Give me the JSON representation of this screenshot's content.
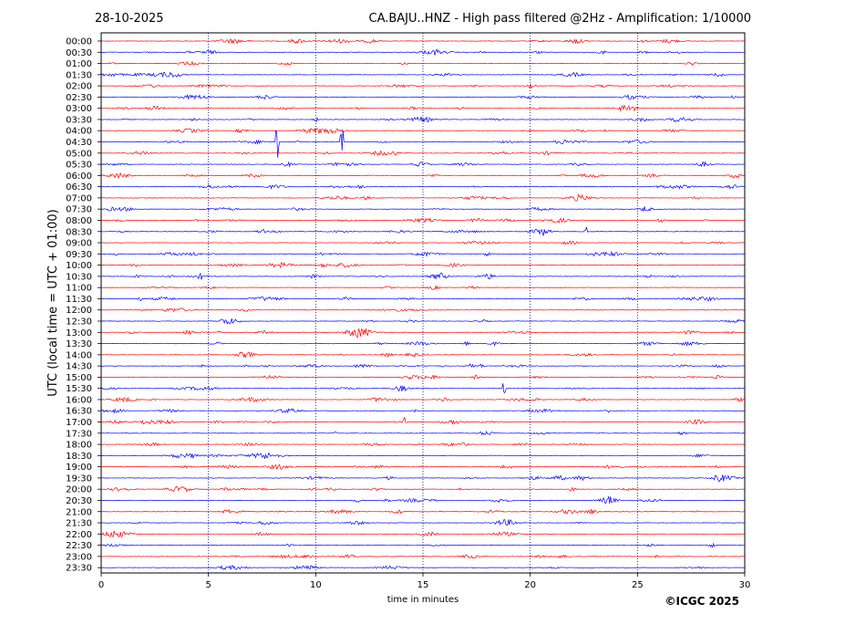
{
  "header": {
    "date": "28-10-2025",
    "title": "CA.BAJU..HNZ - High pass filtered @2Hz - Amplification: 1/10000"
  },
  "footer": {
    "copyright": "©ICGC 2025"
  },
  "colors": {
    "even_rows": "#ff0000",
    "odd_rows": "#0000ff",
    "grid": "#000080"
  },
  "chart_data": {
    "type": "line",
    "title": "CA.BAJU..HNZ - High pass filtered @2Hz - Amplification: 1/10000",
    "xlabel": "time in minutes",
    "ylabel": "UTC (local time = UTC + 01:00)",
    "xlim": [
      0,
      30
    ],
    "x_ticks": [
      "0",
      "5",
      "10",
      "15",
      "20",
      "25",
      "30"
    ],
    "grid_x": [
      5,
      10,
      15,
      20,
      25
    ],
    "rows": [
      "00:00",
      "00:30",
      "01:00",
      "01:30",
      "02:00",
      "02:30",
      "03:00",
      "03:30",
      "04:00",
      "04:30",
      "05:00",
      "05:30",
      "06:00",
      "06:30",
      "07:00",
      "07:30",
      "08:00",
      "08:30",
      "09:00",
      "09:30",
      "10:00",
      "10:30",
      "11:00",
      "11:30",
      "12:00",
      "12:30",
      "13:00",
      "13:30",
      "14:00",
      "14:30",
      "15:00",
      "15:30",
      "16:00",
      "16:30",
      "17:00",
      "17:30",
      "18:00",
      "18:30",
      "19:00",
      "19:30",
      "20:00",
      "20:30",
      "21:00",
      "21:30",
      "22:00",
      "22:30",
      "23:00",
      "23:30"
    ],
    "notable_events": [
      {
        "row": "04:30",
        "minute": 8.2,
        "note": "large amplitude spike"
      },
      {
        "row": "04:30",
        "minute": 11.2,
        "note": "large amplitude spike"
      },
      {
        "row": "08:30",
        "minute": 22.6,
        "note": "small event"
      },
      {
        "row": "10:30",
        "minute": 4.6,
        "note": "small event"
      },
      {
        "row": "15:30",
        "minute": 18.8,
        "note": "small event"
      },
      {
        "row": "17:00",
        "minute": 14.1,
        "note": "small event"
      }
    ]
  }
}
